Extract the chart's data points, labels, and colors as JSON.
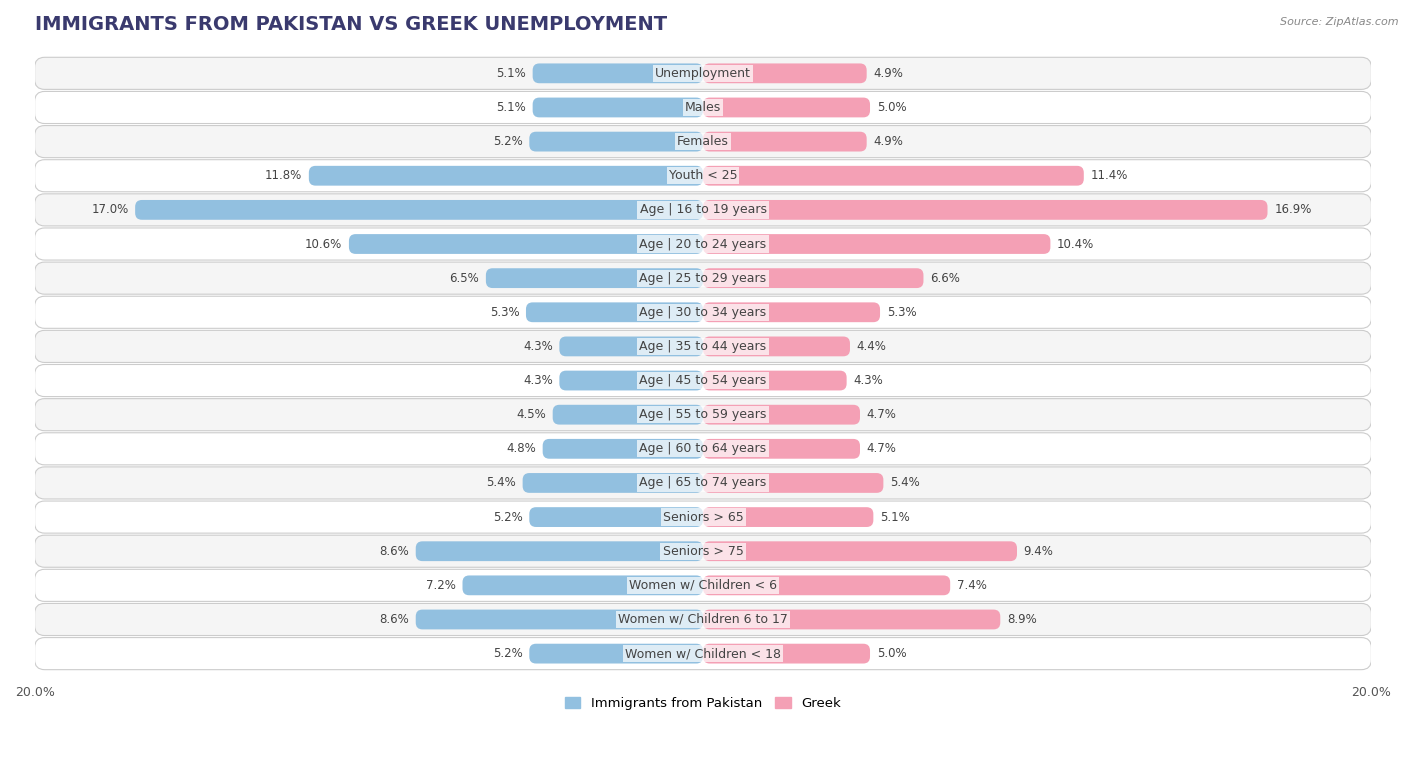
{
  "title": "IMMIGRANTS FROM PAKISTAN VS GREEK UNEMPLOYMENT",
  "source": "Source: ZipAtlas.com",
  "categories": [
    "Unemployment",
    "Males",
    "Females",
    "Youth < 25",
    "Age | 16 to 19 years",
    "Age | 20 to 24 years",
    "Age | 25 to 29 years",
    "Age | 30 to 34 years",
    "Age | 35 to 44 years",
    "Age | 45 to 54 years",
    "Age | 55 to 59 years",
    "Age | 60 to 64 years",
    "Age | 65 to 74 years",
    "Seniors > 65",
    "Seniors > 75",
    "Women w/ Children < 6",
    "Women w/ Children 6 to 17",
    "Women w/ Children < 18"
  ],
  "left_values": [
    5.1,
    5.1,
    5.2,
    11.8,
    17.0,
    10.6,
    6.5,
    5.3,
    4.3,
    4.3,
    4.5,
    4.8,
    5.4,
    5.2,
    8.6,
    7.2,
    8.6,
    5.2
  ],
  "right_values": [
    4.9,
    5.0,
    4.9,
    11.4,
    16.9,
    10.4,
    6.6,
    5.3,
    4.4,
    4.3,
    4.7,
    4.7,
    5.4,
    5.1,
    9.4,
    7.4,
    8.9,
    5.0
  ],
  "left_color": "#92c0e0",
  "right_color": "#f4a0b5",
  "bar_height": 0.58,
  "xlim": 20.0,
  "background_color": "#ffffff",
  "row_color_odd": "#f5f5f5",
  "row_color_even": "#ffffff",
  "row_border_color": "#cccccc",
  "title_fontsize": 14,
  "label_fontsize": 9,
  "value_fontsize": 8.5,
  "legend_label_left": "Immigrants from Pakistan",
  "legend_label_right": "Greek",
  "title_color": "#3a3a6e",
  "source_color": "#888888"
}
